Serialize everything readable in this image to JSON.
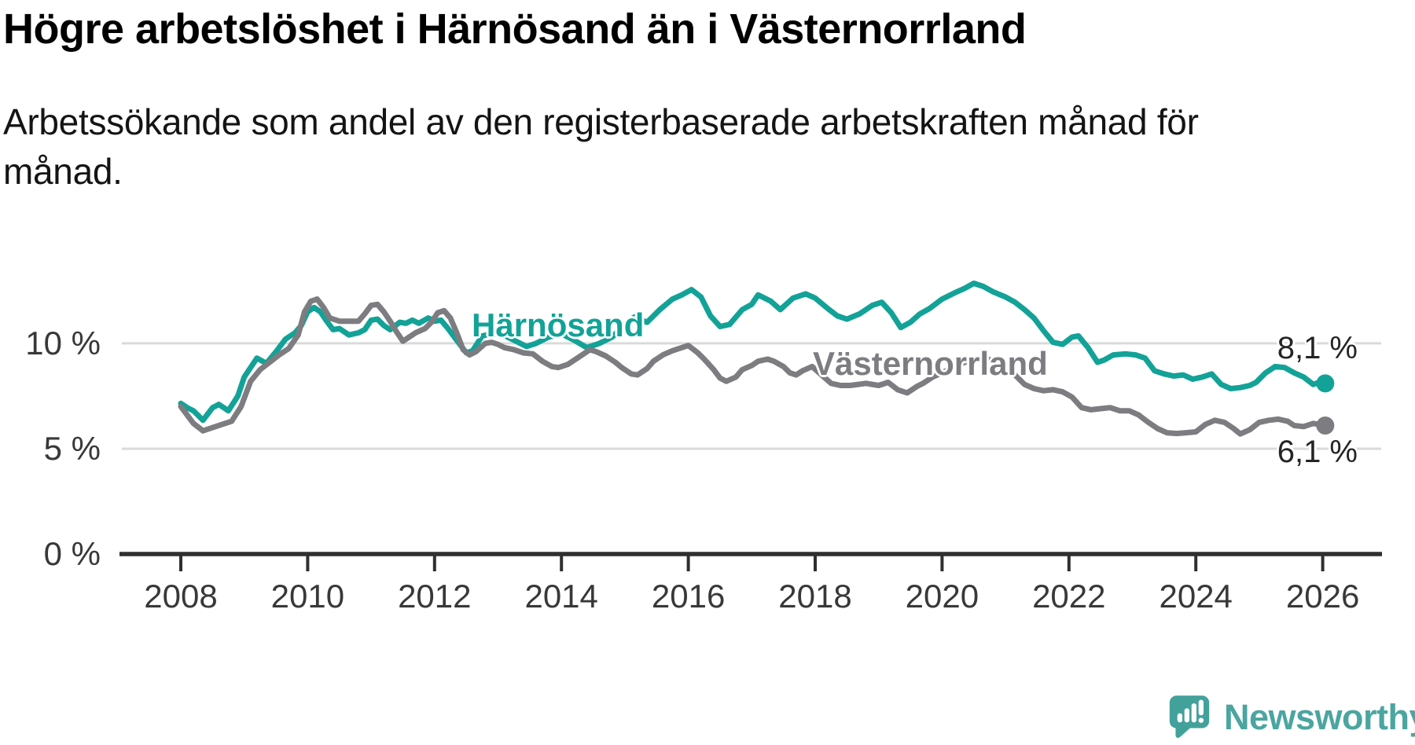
{
  "header": {
    "title": "Högre arbetslöshet i Härnösand än i Västernorrland",
    "subtitle": "Arbetssökande som andel av den registerbaserade arbetskraften månad för månad.",
    "subtitle_line1": "Arbetssökande som andel av den registerbaserade arbetskraften månad för",
    "subtitle_line2": "månad."
  },
  "chart_data": {
    "type": "line",
    "title": "Högre arbetslöshet i Härnösand än i Västernorrland",
    "xlabel": "",
    "ylabel": "Arbetssökande som andel av den registerbaserade arbetskraften",
    "unit": "%",
    "grid": "horizontal",
    "legend_position": "inline-labels",
    "xlim": [
      2007.0,
      2026.95
    ],
    "ylim": [
      0,
      13.8
    ],
    "x_ticks": [
      {
        "label": "2008",
        "year": 2008
      },
      {
        "label": "2010",
        "year": 2010
      },
      {
        "label": "2012",
        "year": 2012
      },
      {
        "label": "2014",
        "year": 2014
      },
      {
        "label": "2016",
        "year": 2016
      },
      {
        "label": "2018",
        "year": 2018
      },
      {
        "label": "2020",
        "year": 2020
      },
      {
        "label": "2022",
        "year": 2022
      },
      {
        "label": "2024",
        "year": 2024
      },
      {
        "label": "2026",
        "year": 2026
      }
    ],
    "y_ticks": [
      {
        "label": "0 %",
        "value": 0
      },
      {
        "label": "5 %",
        "value": 5
      },
      {
        "label": "10 %",
        "value": 10
      }
    ],
    "series": [
      {
        "name": "Härnösand",
        "color": "#13a297",
        "end_label": "8,1 %",
        "end_value": 8.1,
        "points": [
          [
            2008.0,
            7.15
          ],
          [
            2008.1,
            6.95
          ],
          [
            2008.2,
            6.8
          ],
          [
            2008.35,
            6.35
          ],
          [
            2008.5,
            6.95
          ],
          [
            2008.6,
            7.1
          ],
          [
            2008.75,
            6.8
          ],
          [
            2008.9,
            7.5
          ],
          [
            2009.0,
            8.4
          ],
          [
            2009.2,
            9.3
          ],
          [
            2009.35,
            9.05
          ],
          [
            2009.5,
            9.6
          ],
          [
            2009.65,
            10.2
          ],
          [
            2009.8,
            10.5
          ],
          [
            2009.9,
            10.85
          ],
          [
            2010.0,
            11.5
          ],
          [
            2010.1,
            11.7
          ],
          [
            2010.2,
            11.5
          ],
          [
            2010.3,
            11.05
          ],
          [
            2010.4,
            10.65
          ],
          [
            2010.5,
            10.7
          ],
          [
            2010.65,
            10.4
          ],
          [
            2010.8,
            10.5
          ],
          [
            2010.9,
            10.65
          ],
          [
            2011.0,
            11.1
          ],
          [
            2011.1,
            11.15
          ],
          [
            2011.2,
            10.85
          ],
          [
            2011.3,
            10.65
          ],
          [
            2011.45,
            11.0
          ],
          [
            2011.55,
            10.95
          ],
          [
            2011.65,
            11.1
          ],
          [
            2011.75,
            10.95
          ],
          [
            2011.9,
            11.2
          ],
          [
            2012.0,
            11.05
          ],
          [
            2012.1,
            11.1
          ],
          [
            2012.2,
            10.75
          ],
          [
            2012.35,
            10.15
          ],
          [
            2012.5,
            9.55
          ],
          [
            2012.6,
            9.65
          ],
          [
            2012.75,
            10.35
          ],
          [
            2012.9,
            10.45
          ],
          [
            2013.05,
            10.45
          ],
          [
            2013.25,
            10.15
          ],
          [
            2013.45,
            9.85
          ],
          [
            2013.6,
            10.0
          ],
          [
            2013.8,
            10.3
          ],
          [
            2014.0,
            10.45
          ],
          [
            2014.2,
            10.15
          ],
          [
            2014.4,
            9.8
          ],
          [
            2014.6,
            10.0
          ],
          [
            2014.8,
            10.3
          ],
          [
            2015.0,
            10.9
          ],
          [
            2015.15,
            11.25
          ],
          [
            2015.35,
            11.0
          ],
          [
            2015.55,
            11.6
          ],
          [
            2015.75,
            12.1
          ],
          [
            2015.9,
            12.3
          ],
          [
            2016.05,
            12.55
          ],
          [
            2016.2,
            12.2
          ],
          [
            2016.35,
            11.3
          ],
          [
            2016.5,
            10.8
          ],
          [
            2016.65,
            10.9
          ],
          [
            2016.85,
            11.6
          ],
          [
            2017.0,
            11.85
          ],
          [
            2017.1,
            12.3
          ],
          [
            2017.3,
            12.0
          ],
          [
            2017.45,
            11.6
          ],
          [
            2017.65,
            12.15
          ],
          [
            2017.85,
            12.35
          ],
          [
            2018.0,
            12.15
          ],
          [
            2018.2,
            11.65
          ],
          [
            2018.35,
            11.3
          ],
          [
            2018.5,
            11.15
          ],
          [
            2018.7,
            11.4
          ],
          [
            2018.9,
            11.8
          ],
          [
            2019.05,
            11.95
          ],
          [
            2019.2,
            11.45
          ],
          [
            2019.35,
            10.75
          ],
          [
            2019.5,
            11.0
          ],
          [
            2019.65,
            11.4
          ],
          [
            2019.8,
            11.65
          ],
          [
            2020.0,
            12.1
          ],
          [
            2020.2,
            12.4
          ],
          [
            2020.35,
            12.6
          ],
          [
            2020.5,
            12.85
          ],
          [
            2020.65,
            12.7
          ],
          [
            2020.8,
            12.45
          ],
          [
            2021.0,
            12.2
          ],
          [
            2021.15,
            11.95
          ],
          [
            2021.3,
            11.6
          ],
          [
            2021.45,
            11.2
          ],
          [
            2021.6,
            10.6
          ],
          [
            2021.75,
            10.05
          ],
          [
            2021.9,
            9.95
          ],
          [
            2022.05,
            10.3
          ],
          [
            2022.15,
            10.35
          ],
          [
            2022.3,
            9.8
          ],
          [
            2022.45,
            9.1
          ],
          [
            2022.55,
            9.2
          ],
          [
            2022.7,
            9.45
          ],
          [
            2022.9,
            9.5
          ],
          [
            2023.05,
            9.45
          ],
          [
            2023.2,
            9.3
          ],
          [
            2023.35,
            8.7
          ],
          [
            2023.5,
            8.55
          ],
          [
            2023.65,
            8.45
          ],
          [
            2023.8,
            8.5
          ],
          [
            2023.95,
            8.3
          ],
          [
            2024.1,
            8.4
          ],
          [
            2024.25,
            8.55
          ],
          [
            2024.4,
            8.05
          ],
          [
            2024.55,
            7.85
          ],
          [
            2024.7,
            7.9
          ],
          [
            2024.85,
            8.0
          ],
          [
            2024.95,
            8.15
          ],
          [
            2025.1,
            8.6
          ],
          [
            2025.25,
            8.9
          ],
          [
            2025.4,
            8.85
          ],
          [
            2025.55,
            8.6
          ],
          [
            2025.7,
            8.4
          ],
          [
            2025.85,
            8.05
          ],
          [
            2025.95,
            8.15
          ],
          [
            2026.04,
            8.1
          ]
        ]
      },
      {
        "name": "Västernorrland",
        "color": "#7c7c81",
        "end_label": "6,1 %",
        "end_value": 6.1,
        "points": [
          [
            2008.0,
            7.0
          ],
          [
            2008.1,
            6.6
          ],
          [
            2008.2,
            6.2
          ],
          [
            2008.35,
            5.85
          ],
          [
            2008.5,
            6.0
          ],
          [
            2008.65,
            6.15
          ],
          [
            2008.8,
            6.3
          ],
          [
            2008.95,
            7.0
          ],
          [
            2009.1,
            8.2
          ],
          [
            2009.25,
            8.75
          ],
          [
            2009.4,
            9.1
          ],
          [
            2009.55,
            9.45
          ],
          [
            2009.7,
            9.75
          ],
          [
            2009.85,
            10.4
          ],
          [
            2009.95,
            11.5
          ],
          [
            2010.05,
            12.0
          ],
          [
            2010.15,
            12.1
          ],
          [
            2010.25,
            11.7
          ],
          [
            2010.35,
            11.2
          ],
          [
            2010.5,
            11.05
          ],
          [
            2010.65,
            11.05
          ],
          [
            2010.8,
            11.05
          ],
          [
            2010.9,
            11.4
          ],
          [
            2011.0,
            11.8
          ],
          [
            2011.1,
            11.85
          ],
          [
            2011.2,
            11.5
          ],
          [
            2011.3,
            11.05
          ],
          [
            2011.4,
            10.55
          ],
          [
            2011.5,
            10.1
          ],
          [
            2011.6,
            10.3
          ],
          [
            2011.7,
            10.5
          ],
          [
            2011.85,
            10.7
          ],
          [
            2011.95,
            11.0
          ],
          [
            2012.05,
            11.45
          ],
          [
            2012.15,
            11.55
          ],
          [
            2012.25,
            11.2
          ],
          [
            2012.35,
            10.5
          ],
          [
            2012.45,
            9.7
          ],
          [
            2012.55,
            9.45
          ],
          [
            2012.65,
            9.6
          ],
          [
            2012.8,
            10.0
          ],
          [
            2012.9,
            10.05
          ],
          [
            2013.0,
            9.95
          ],
          [
            2013.1,
            9.8
          ],
          [
            2013.25,
            9.7
          ],
          [
            2013.4,
            9.55
          ],
          [
            2013.55,
            9.5
          ],
          [
            2013.7,
            9.15
          ],
          [
            2013.85,
            8.9
          ],
          [
            2013.95,
            8.85
          ],
          [
            2014.1,
            9.0
          ],
          [
            2014.25,
            9.3
          ],
          [
            2014.45,
            9.7
          ],
          [
            2014.55,
            9.6
          ],
          [
            2014.7,
            9.4
          ],
          [
            2014.85,
            9.1
          ],
          [
            2014.95,
            8.85
          ],
          [
            2015.1,
            8.55
          ],
          [
            2015.2,
            8.5
          ],
          [
            2015.35,
            8.8
          ],
          [
            2015.45,
            9.15
          ],
          [
            2015.6,
            9.45
          ],
          [
            2015.75,
            9.65
          ],
          [
            2015.9,
            9.8
          ],
          [
            2016.0,
            9.9
          ],
          [
            2016.15,
            9.55
          ],
          [
            2016.25,
            9.25
          ],
          [
            2016.4,
            8.75
          ],
          [
            2016.5,
            8.35
          ],
          [
            2016.6,
            8.2
          ],
          [
            2016.75,
            8.4
          ],
          [
            2016.85,
            8.75
          ],
          [
            2017.0,
            8.95
          ],
          [
            2017.1,
            9.15
          ],
          [
            2017.25,
            9.25
          ],
          [
            2017.35,
            9.15
          ],
          [
            2017.5,
            8.9
          ],
          [
            2017.6,
            8.6
          ],
          [
            2017.7,
            8.5
          ],
          [
            2017.8,
            8.7
          ],
          [
            2017.95,
            8.9
          ],
          [
            2018.1,
            8.5
          ],
          [
            2018.25,
            8.1
          ],
          [
            2018.4,
            8.0
          ],
          [
            2018.55,
            8.0
          ],
          [
            2018.8,
            8.1
          ],
          [
            2019.0,
            8.0
          ],
          [
            2019.15,
            8.15
          ],
          [
            2019.3,
            7.8
          ],
          [
            2019.45,
            7.65
          ],
          [
            2019.6,
            7.95
          ],
          [
            2019.7,
            8.1
          ],
          [
            2019.85,
            8.4
          ],
          [
            2020.0,
            8.6
          ],
          [
            2020.2,
            8.9
          ],
          [
            2020.4,
            9.15
          ],
          [
            2020.6,
            9.3
          ],
          [
            2020.8,
            9.2
          ],
          [
            2021.0,
            8.9
          ],
          [
            2021.15,
            8.5
          ],
          [
            2021.3,
            8.05
          ],
          [
            2021.45,
            7.85
          ],
          [
            2021.6,
            7.75
          ],
          [
            2021.75,
            7.8
          ],
          [
            2021.9,
            7.7
          ],
          [
            2022.05,
            7.45
          ],
          [
            2022.2,
            6.95
          ],
          [
            2022.35,
            6.85
          ],
          [
            2022.5,
            6.9
          ],
          [
            2022.65,
            6.95
          ],
          [
            2022.8,
            6.8
          ],
          [
            2022.95,
            6.8
          ],
          [
            2023.1,
            6.6
          ],
          [
            2023.25,
            6.25
          ],
          [
            2023.4,
            5.95
          ],
          [
            2023.55,
            5.75
          ],
          [
            2023.7,
            5.72
          ],
          [
            2023.85,
            5.76
          ],
          [
            2024.0,
            5.8
          ],
          [
            2024.15,
            6.15
          ],
          [
            2024.3,
            6.35
          ],
          [
            2024.45,
            6.25
          ],
          [
            2024.6,
            5.95
          ],
          [
            2024.7,
            5.7
          ],
          [
            2024.85,
            5.9
          ],
          [
            2025.0,
            6.25
          ],
          [
            2025.15,
            6.35
          ],
          [
            2025.3,
            6.4
          ],
          [
            2025.45,
            6.3
          ],
          [
            2025.55,
            6.1
          ],
          [
            2025.7,
            6.05
          ],
          [
            2025.85,
            6.2
          ],
          [
            2026.04,
            6.1
          ]
        ]
      }
    ],
    "colors": {
      "grid": "#dadada",
      "axis": "#2f2f2f",
      "tick_text": "#383838"
    }
  },
  "footer": {
    "brand": "Newsworthy",
    "logo_icon": "newsworthy-speech-bubble-bar-chart-icon",
    "brand_color": "#4ba5a0",
    "icon_color": "#43a19b"
  }
}
